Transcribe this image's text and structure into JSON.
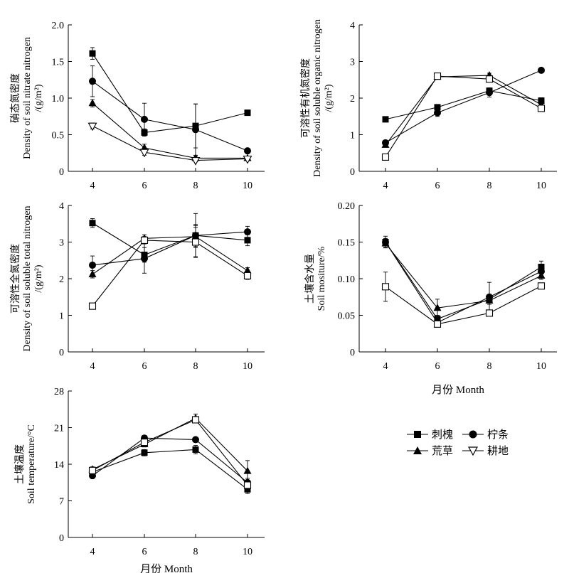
{
  "legend": {
    "items": [
      {
        "label": "刺槐",
        "marker": "square-filled"
      },
      {
        "label": "柠条",
        "marker": "circle-filled"
      },
      {
        "label": "荒草",
        "marker": "triangle-filled"
      },
      {
        "label": "耕地",
        "marker": "triangle-down-open"
      }
    ]
  },
  "chart_data": [
    {
      "id": "nitrate",
      "type": "line",
      "ylabel_lines": [
        "硝态氮密度",
        "Density of soil nitrate nitrogen",
        "/(g/m²)"
      ],
      "xlabel": "",
      "x": [
        4,
        6,
        8,
        10
      ],
      "xticks": [
        "4",
        "6",
        "8",
        "10"
      ],
      "ylim": [
        0,
        2.0
      ],
      "yticks": [
        "0",
        "0.5",
        "1.0",
        "1.5",
        "2.0"
      ],
      "series": [
        {
          "name": "刺槐",
          "marker": "square-filled",
          "values": [
            1.61,
            0.53,
            0.62,
            0.8
          ],
          "err": [
            0.08,
            0.05,
            0.3,
            0
          ]
        },
        {
          "name": "柠条",
          "marker": "circle-filled",
          "values": [
            1.23,
            0.71,
            0.57,
            0.28
          ],
          "err": [
            0.21,
            0.22,
            0.35,
            0.03
          ]
        },
        {
          "name": "荒草",
          "marker": "triangle-filled",
          "values": [
            0.93,
            0.32,
            0.18,
            0.18
          ],
          "err": [
            0.05,
            0.05,
            0.03,
            0.02
          ]
        },
        {
          "name": "耕地",
          "marker": "triangle-down-open",
          "values": [
            0.62,
            0.26,
            0.15,
            0.17
          ],
          "err": [
            0.04,
            0.04,
            0.02,
            0.02
          ]
        }
      ]
    },
    {
      "id": "organic",
      "type": "line",
      "ylabel_lines": [
        "可溶性有机氮密度",
        "Density of soil soluble organic nitrogen",
        "/(g/m²)"
      ],
      "xlabel": "",
      "x": [
        4,
        6,
        8,
        10
      ],
      "xticks": [
        "4",
        "6",
        "8",
        "10"
      ],
      "ylim": [
        0,
        4
      ],
      "yticks": [
        "0",
        "1",
        "2",
        "3",
        "4"
      ],
      "series": [
        {
          "name": "刺槐",
          "marker": "square-filled",
          "values": [
            1.42,
            1.75,
            2.2,
            1.93
          ],
          "err": [
            0.05,
            0.06,
            0.08,
            0.08
          ]
        },
        {
          "name": "柠条",
          "marker": "circle-filled",
          "values": [
            0.78,
            1.6,
            2.15,
            2.76
          ],
          "err": [
            0.05,
            0.1,
            0.12,
            0.05
          ]
        },
        {
          "name": "荒草",
          "marker": "triangle-filled",
          "values": [
            0.72,
            2.58,
            2.62,
            1.82
          ],
          "err": [
            0.05,
            0.06,
            0.06,
            0.06
          ]
        },
        {
          "name": "耕地",
          "marker": "square-open",
          "values": [
            0.39,
            2.6,
            2.52,
            1.72
          ],
          "err": [
            0.04,
            0.05,
            0.06,
            0.05
          ]
        }
      ]
    },
    {
      "id": "total",
      "type": "line",
      "ylabel_lines": [
        "可溶性全氮密度",
        "Density of soil soluble total nitrogen",
        "/(g/m²)"
      ],
      "xlabel": "",
      "x": [
        4,
        6,
        8,
        10
      ],
      "xticks": [
        "4",
        "6",
        "8",
        "10"
      ],
      "ylim": [
        0,
        4
      ],
      "yticks": [
        "0",
        "1",
        "2",
        "3",
        "4"
      ],
      "series": [
        {
          "name": "刺槐",
          "marker": "square-filled",
          "values": [
            3.52,
            2.65,
            3.18,
            3.05
          ],
          "err": [
            0.12,
            0.2,
            0.6,
            0.15
          ]
        },
        {
          "name": "柠条",
          "marker": "circle-filled",
          "values": [
            2.37,
            2.55,
            3.18,
            3.28
          ],
          "err": [
            0.25,
            0.4,
            0.3,
            0.15
          ]
        },
        {
          "name": "荒草",
          "marker": "triangle-filled",
          "values": [
            2.12,
            3.1,
            3.15,
            2.22
          ],
          "err": [
            0.1,
            0.1,
            0.3,
            0.08
          ]
        },
        {
          "name": "耕地",
          "marker": "square-open",
          "values": [
            1.25,
            3.05,
            3.0,
            2.08
          ],
          "err": [
            0.05,
            0.1,
            0.4,
            0.1
          ]
        }
      ]
    },
    {
      "id": "moisture",
      "type": "line",
      "ylabel_lines": [
        "土壤含水量",
        "Soil mositure/%"
      ],
      "xlabel": "月份 Month",
      "x": [
        4,
        6,
        8,
        10
      ],
      "xticks": [
        "4",
        "6",
        "8",
        "10"
      ],
      "ylim": [
        0,
        0.2
      ],
      "yticks": [
        "0",
        "0.05",
        "0.10",
        "0.15",
        "0.20"
      ],
      "series": [
        {
          "name": "刺槐",
          "marker": "square-filled",
          "values": [
            0.15,
            0.045,
            0.072,
            0.116
          ],
          "err": [
            0.005,
            0.005,
            0.005,
            0.008
          ]
        },
        {
          "name": "柠条",
          "marker": "circle-filled",
          "values": [
            0.15,
            0.04,
            0.075,
            0.11
          ],
          "err": [
            0.008,
            0.005,
            0.02,
            0.008
          ]
        },
        {
          "name": "荒草",
          "marker": "triangle-filled",
          "values": [
            0.148,
            0.06,
            0.07,
            0.104
          ],
          "err": [
            0.005,
            0.012,
            0.005,
            0.005
          ]
        },
        {
          "name": "耕地",
          "marker": "square-open",
          "values": [
            0.089,
            0.038,
            0.053,
            0.09
          ],
          "err": [
            0.02,
            0.003,
            0.003,
            0.004
          ]
        }
      ]
    },
    {
      "id": "temperature",
      "type": "line",
      "ylabel_lines": [
        "土壤温度",
        "Soil temperature/°C"
      ],
      "xlabel": "月份 Month",
      "x": [
        4,
        6,
        8,
        10
      ],
      "xticks": [
        "4",
        "6",
        "8",
        "10"
      ],
      "ylim": [
        0,
        28
      ],
      "yticks": [
        "0",
        "7",
        "14",
        "21",
        "28"
      ],
      "series": [
        {
          "name": "刺槐",
          "marker": "square-filled",
          "values": [
            12.5,
            16.2,
            16.8,
            9.2
          ],
          "err": [
            0.5,
            0.6,
            0.8,
            0.8
          ]
        },
        {
          "name": "柠条",
          "marker": "circle-filled",
          "values": [
            11.8,
            19.0,
            18.7,
            10.5
          ],
          "err": [
            0.4,
            0.5,
            0.4,
            0.8
          ]
        },
        {
          "name": "荒草",
          "marker": "triangle-filled",
          "values": [
            13.0,
            17.8,
            22.8,
            12.7
          ],
          "err": [
            0.5,
            0.5,
            0.8,
            2.0
          ]
        },
        {
          "name": "耕地",
          "marker": "square-open",
          "values": [
            12.8,
            18.2,
            22.5,
            10.0
          ],
          "err": [
            0.4,
            0.5,
            0.6,
            0.7
          ]
        }
      ]
    }
  ]
}
